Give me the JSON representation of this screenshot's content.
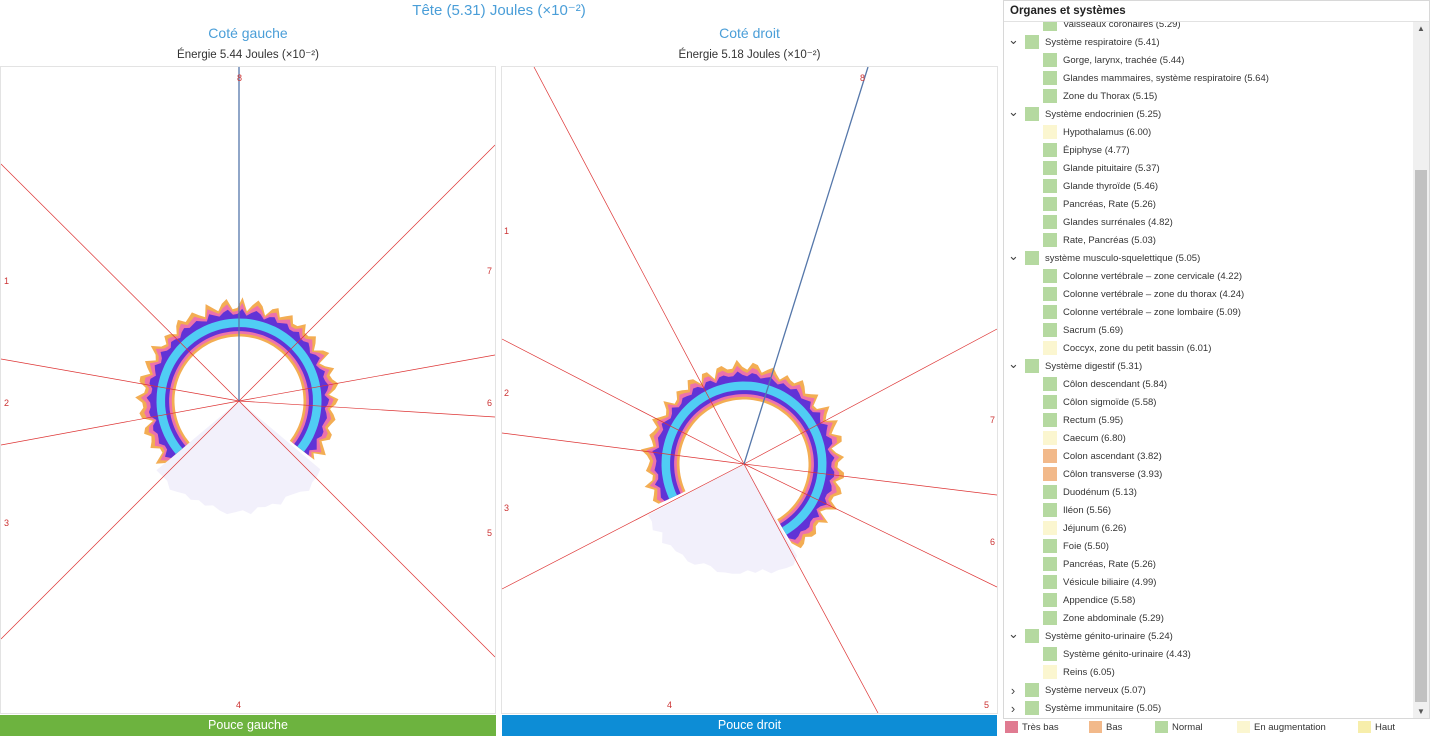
{
  "header": {
    "title": "Tête (5.31) Joules (×10⁻²)"
  },
  "left_panel": {
    "subtitle": "Coté gauche",
    "energy": "Énergie 5.44 Joules (×10⁻²)",
    "button": "Pouce gauche",
    "sector_labels": [
      "8",
      "1",
      "2",
      "3",
      "4",
      "5",
      "6",
      "7"
    ]
  },
  "right_panel": {
    "subtitle": "Coté droit",
    "energy": "Énergie 5.18 Joules (×10⁻²)",
    "button": "Pouce droit",
    "sector_labels": [
      "8",
      "1",
      "2",
      "3",
      "4",
      "5",
      "6",
      "7"
    ]
  },
  "sidebar": {
    "title": "Organes et systèmes",
    "rows": [
      {
        "level": 1,
        "label": "Vaisseaux coronaires (5.29)",
        "status": "normal"
      },
      {
        "level": 0,
        "label": "Système respiratoire (5.41)",
        "status": "normal",
        "expanded": true
      },
      {
        "level": 1,
        "label": "Gorge, larynx, trachée (5.44)",
        "status": "normal"
      },
      {
        "level": 1,
        "label": "Glandes mammaires, système respiratoire (5.64)",
        "status": "normal"
      },
      {
        "level": 1,
        "label": "Zone du Thorax (5.15)",
        "status": "normal"
      },
      {
        "level": 0,
        "label": "Système endocrinien (5.25)",
        "status": "normal",
        "expanded": true
      },
      {
        "level": 1,
        "label": "Hypothalamus (6.00)",
        "status": "increase"
      },
      {
        "level": 1,
        "label": "Épiphyse (4.77)",
        "status": "normal"
      },
      {
        "level": 1,
        "label": "Glande pituitaire (5.37)",
        "status": "normal"
      },
      {
        "level": 1,
        "label": "Glande thyroïde (5.46)",
        "status": "normal"
      },
      {
        "level": 1,
        "label": "Pancréas, Rate (5.26)",
        "status": "normal"
      },
      {
        "level": 1,
        "label": "Glandes surrénales (4.82)",
        "status": "normal"
      },
      {
        "level": 1,
        "label": "Rate, Pancréas (5.03)",
        "status": "normal"
      },
      {
        "level": 0,
        "label": "système musculo-squelettique (5.05)",
        "status": "normal",
        "expanded": true
      },
      {
        "level": 1,
        "label": "Colonne vertébrale – zone cervicale (4.22)",
        "status": "normal"
      },
      {
        "level": 1,
        "label": "Colonne vertébrale – zone du thorax (4.24)",
        "status": "normal"
      },
      {
        "level": 1,
        "label": "Colonne vertébrale – zone lombaire (5.09)",
        "status": "normal"
      },
      {
        "level": 1,
        "label": "Sacrum (5.69)",
        "status": "normal"
      },
      {
        "level": 1,
        "label": "Coccyx, zone du petit bassin (6.01)",
        "status": "increase"
      },
      {
        "level": 0,
        "label": "Système digestif (5.31)",
        "status": "normal",
        "expanded": true
      },
      {
        "level": 1,
        "label": "Côlon descendant (5.84)",
        "status": "normal"
      },
      {
        "level": 1,
        "label": "Côlon sigmoïde (5.58)",
        "status": "normal"
      },
      {
        "level": 1,
        "label": "Rectum (5.95)",
        "status": "normal"
      },
      {
        "level": 1,
        "label": "Caecum (6.80)",
        "status": "increase"
      },
      {
        "level": 1,
        "label": "Colon ascendant (3.82)",
        "status": "low"
      },
      {
        "level": 1,
        "label": "Côlon transverse (3.93)",
        "status": "low"
      },
      {
        "level": 1,
        "label": "Duodénum (5.13)",
        "status": "normal"
      },
      {
        "level": 1,
        "label": "Iléon (5.56)",
        "status": "normal"
      },
      {
        "level": 1,
        "label": "Jéjunum (6.26)",
        "status": "increase"
      },
      {
        "level": 1,
        "label": "Foie (5.50)",
        "status": "normal"
      },
      {
        "level": 1,
        "label": "Pancréas, Rate (5.26)",
        "status": "normal"
      },
      {
        "level": 1,
        "label": "Vésicule biliaire (4.99)",
        "status": "normal"
      },
      {
        "level": 1,
        "label": "Appendice (5.58)",
        "status": "normal"
      },
      {
        "level": 1,
        "label": "Zone abdominale (5.29)",
        "status": "normal"
      },
      {
        "level": 0,
        "label": "Système génito-urinaire (5.24)",
        "status": "normal",
        "expanded": true
      },
      {
        "level": 1,
        "label": "Système génito-urinaire (4.43)",
        "status": "normal"
      },
      {
        "level": 1,
        "label": "Reins (6.05)",
        "status": "increase"
      },
      {
        "level": 0,
        "label": "Système nerveux (5.07)",
        "status": "normal",
        "expanded": false
      },
      {
        "level": 0,
        "label": "Système immunitaire (5.05)",
        "status": "normal",
        "expanded": false
      }
    ]
  },
  "legend": [
    {
      "label": "Très bas",
      "color": "#e07b91"
    },
    {
      "label": "Bas",
      "color": "#f2b98a"
    },
    {
      "label": "Normal",
      "color": "#b5d9a0"
    },
    {
      "label": "En augmentation",
      "color": "#fbf6d0"
    },
    {
      "label": "Haut",
      "color": "#f7eeab"
    }
  ],
  "status_colors": {
    "normal": "#b5d9a0",
    "low": "#f2b98a",
    "increase": "#fbf6d0",
    "very_low": "#e07b91",
    "high": "#f7eeab"
  }
}
